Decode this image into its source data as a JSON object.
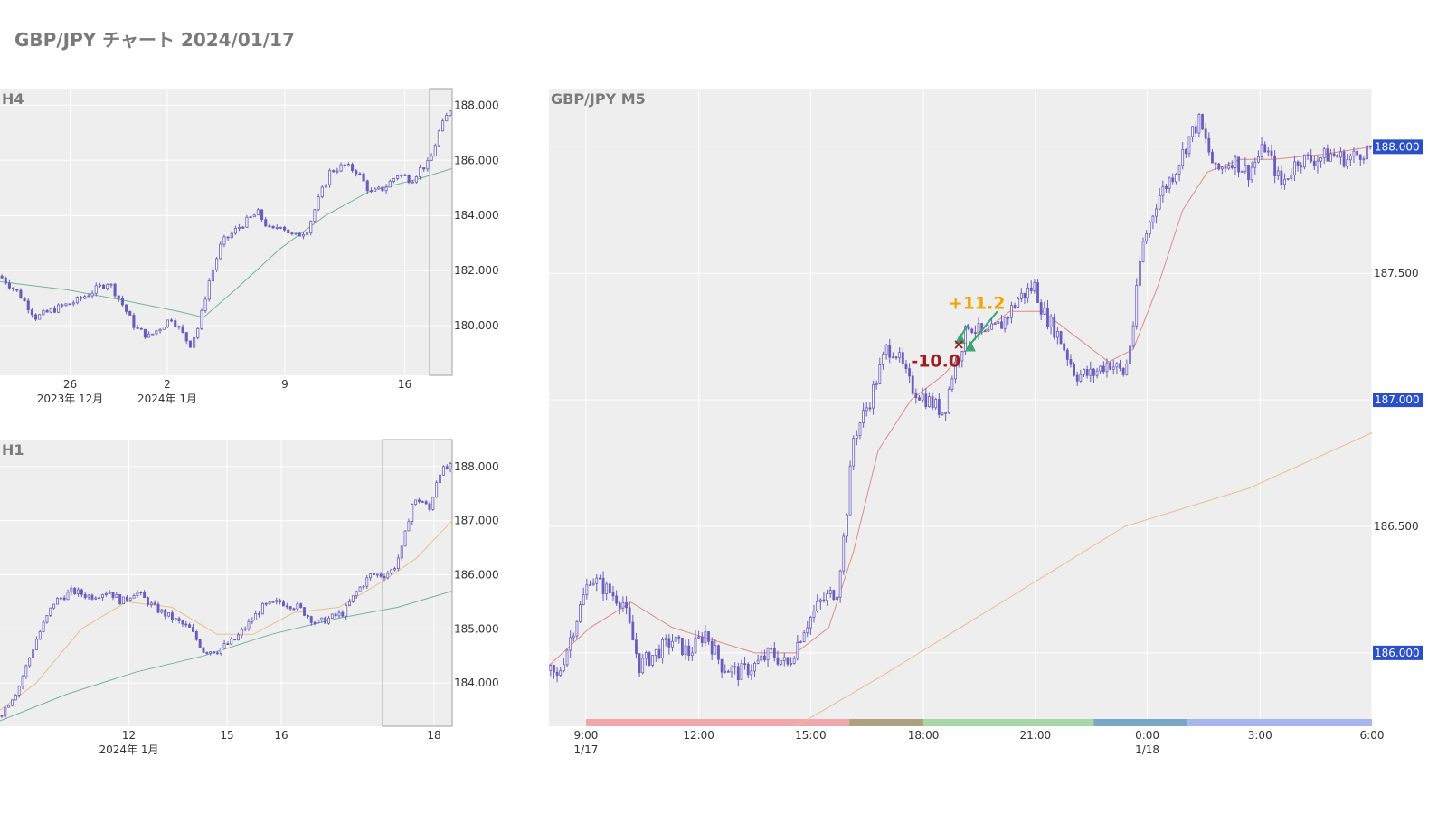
{
  "title": "GBP/JPY チャート 2024/01/17",
  "colors": {
    "plot_bg": "#eeeeee",
    "grid": "#ffffff",
    "candle": "#6a5cbf",
    "ma_green": "#6fb59a",
    "ma_orange": "#e8c08a",
    "ma_red": "#e08a8a",
    "badge": "#2a4fc8",
    "win": "#f5a300",
    "loss": "#a11d21",
    "arrow": "#3aa573"
  },
  "chart_data": [
    {
      "id": "h4",
      "type": "candlestick",
      "label": "H4",
      "x_ticks": [
        {
          "label": "26",
          "sub": "2023年 12月",
          "t": 0.155
        },
        {
          "label": "2",
          "sub": "2024年 1月",
          "t": 0.37
        },
        {
          "label": "9",
          "sub": "",
          "t": 0.63
        },
        {
          "label": "16",
          "sub": "",
          "t": 0.895
        }
      ],
      "y_ticks": [
        180,
        182,
        184,
        186,
        188
      ],
      "y_tick_labels": [
        "180.000",
        "182.000",
        "184.000",
        "186.000",
        "188.000"
      ],
      "ylim": [
        178.2,
        188.6
      ],
      "path": [
        [
          0,
          181.8
        ],
        [
          0.04,
          181.2
        ],
        [
          0.08,
          180.3
        ],
        [
          0.12,
          180.6
        ],
        [
          0.17,
          180.9
        ],
        [
          0.21,
          181.3
        ],
        [
          0.24,
          181.6
        ],
        [
          0.27,
          180.8
        ],
        [
          0.3,
          179.9
        ],
        [
          0.33,
          179.6
        ],
        [
          0.38,
          180.3
        ],
        [
          0.42,
          179.3
        ],
        [
          0.44,
          180.0
        ],
        [
          0.46,
          181.5
        ],
        [
          0.49,
          183.0
        ],
        [
          0.53,
          183.6
        ],
        [
          0.57,
          184.1
        ],
        [
          0.6,
          183.4
        ],
        [
          0.62,
          183.7
        ],
        [
          0.65,
          183.2
        ],
        [
          0.68,
          183.5
        ],
        [
          0.7,
          184.4
        ],
        [
          0.73,
          185.6
        ],
        [
          0.76,
          185.8
        ],
        [
          0.79,
          185.6
        ],
        [
          0.82,
          184.8
        ],
        [
          0.85,
          185.0
        ],
        [
          0.88,
          185.5
        ],
        [
          0.91,
          185.3
        ],
        [
          0.93,
          185.7
        ],
        [
          0.95,
          185.9
        ],
        [
          0.97,
          187.0
        ],
        [
          1.0,
          188.0
        ]
      ],
      "ma": [
        {
          "color": "ma_green",
          "path": [
            [
              0,
              181.6
            ],
            [
              0.15,
              181.3
            ],
            [
              0.28,
              180.9
            ],
            [
              0.4,
              180.5
            ],
            [
              0.45,
              180.3
            ],
            [
              0.52,
              181.3
            ],
            [
              0.62,
              182.8
            ],
            [
              0.72,
              184.0
            ],
            [
              0.82,
              184.9
            ],
            [
              0.92,
              185.3
            ],
            [
              1.0,
              185.7
            ]
          ]
        }
      ]
    },
    {
      "id": "h1",
      "type": "candlestick",
      "label": "H1",
      "x_ticks": [
        {
          "label": "12",
          "sub": "2024年 1月",
          "t": 0.285
        },
        {
          "label": "15",
          "sub": "",
          "t": 0.502
        },
        {
          "label": "16",
          "sub": "",
          "t": 0.622
        },
        {
          "label": "18",
          "sub": "",
          "t": 0.96
        }
      ],
      "y_ticks": [
        184,
        185,
        186,
        187,
        188
      ],
      "y_tick_labels": [
        "184.000",
        "185.000",
        "186.000",
        "187.000",
        "188.000"
      ],
      "ylim": [
        183.2,
        188.5
      ],
      "path": [
        [
          0,
          183.4
        ],
        [
          0.04,
          183.9
        ],
        [
          0.08,
          184.8
        ],
        [
          0.12,
          185.5
        ],
        [
          0.16,
          185.7
        ],
        [
          0.2,
          185.6
        ],
        [
          0.24,
          185.7
        ],
        [
          0.27,
          185.5
        ],
        [
          0.3,
          185.7
        ],
        [
          0.34,
          185.4
        ],
        [
          0.38,
          185.2
        ],
        [
          0.42,
          185.0
        ],
        [
          0.45,
          184.6
        ],
        [
          0.48,
          184.6
        ],
        [
          0.52,
          184.8
        ],
        [
          0.55,
          185.1
        ],
        [
          0.58,
          185.4
        ],
        [
          0.62,
          185.5
        ],
        [
          0.66,
          185.4
        ],
        [
          0.7,
          185.1
        ],
        [
          0.73,
          185.2
        ],
        [
          0.76,
          185.3
        ],
        [
          0.79,
          185.7
        ],
        [
          0.82,
          186.0
        ],
        [
          0.85,
          186.0
        ],
        [
          0.87,
          186.1
        ],
        [
          0.89,
          186.5
        ],
        [
          0.91,
          187.3
        ],
        [
          0.93,
          187.4
        ],
        [
          0.95,
          187.2
        ],
        [
          0.97,
          187.9
        ],
        [
          1.0,
          188.0
        ]
      ],
      "ma": [
        {
          "color": "ma_orange",
          "path": [
            [
              0,
              183.5
            ],
            [
              0.08,
              184.0
            ],
            [
              0.18,
              185.0
            ],
            [
              0.28,
              185.5
            ],
            [
              0.38,
              185.4
            ],
            [
              0.48,
              184.9
            ],
            [
              0.56,
              184.9
            ],
            [
              0.65,
              185.3
            ],
            [
              0.75,
              185.4
            ],
            [
              0.85,
              185.9
            ],
            [
              0.92,
              186.3
            ],
            [
              1.0,
              187.0
            ]
          ]
        },
        {
          "color": "ma_green",
          "path": [
            [
              0,
              183.3
            ],
            [
              0.15,
              183.8
            ],
            [
              0.3,
              184.2
            ],
            [
              0.45,
              184.5
            ],
            [
              0.6,
              184.9
            ],
            [
              0.75,
              185.2
            ],
            [
              0.88,
              185.4
            ],
            [
              1.0,
              185.7
            ]
          ]
        }
      ]
    },
    {
      "id": "m5",
      "type": "candlestick",
      "label": "GBP/JPY M5",
      "x_ticks": [
        {
          "label": "9:00",
          "sub": "1/17",
          "t": 0.045
        },
        {
          "label": "12:00",
          "sub": "",
          "t": 0.182
        },
        {
          "label": "15:00",
          "sub": "",
          "t": 0.318
        },
        {
          "label": "18:00",
          "sub": "",
          "t": 0.455
        },
        {
          "label": "21:00",
          "sub": "",
          "t": 0.591
        },
        {
          "label": "0:00",
          "sub": "1/18",
          "t": 0.727
        },
        {
          "label": "3:00",
          "sub": "",
          "t": 0.864
        },
        {
          "label": "6:00",
          "sub": "",
          "t": 1.0
        }
      ],
      "y_ticks": [
        186.0,
        186.5,
        187.0,
        187.5,
        188.0
      ],
      "y_tick_labels": [
        "186.000",
        "186.500",
        "187.000",
        "187.500",
        "188.000"
      ],
      "y_badges": [
        "188.000",
        "187.000",
        "186.000"
      ],
      "ylim": [
        185.71,
        188.23
      ],
      "path": [
        [
          0,
          185.93
        ],
        [
          0.01,
          185.9
        ],
        [
          0.03,
          186.1
        ],
        [
          0.05,
          186.3
        ],
        [
          0.07,
          186.25
        ],
        [
          0.09,
          186.2
        ],
        [
          0.11,
          185.95
        ],
        [
          0.13,
          186.0
        ],
        [
          0.15,
          186.05
        ],
        [
          0.17,
          186.0
        ],
        [
          0.19,
          186.08
        ],
        [
          0.21,
          185.95
        ],
        [
          0.23,
          185.92
        ],
        [
          0.25,
          185.95
        ],
        [
          0.27,
          186.0
        ],
        [
          0.29,
          185.95
        ],
        [
          0.31,
          186.1
        ],
        [
          0.33,
          186.2
        ],
        [
          0.35,
          186.25
        ],
        [
          0.36,
          186.5
        ],
        [
          0.37,
          186.85
        ],
        [
          0.39,
          187.0
        ],
        [
          0.41,
          187.2
        ],
        [
          0.42,
          187.2
        ],
        [
          0.44,
          187.05
        ],
        [
          0.46,
          187.0
        ],
        [
          0.48,
          186.95
        ],
        [
          0.49,
          187.1
        ],
        [
          0.5,
          187.2
        ],
        [
          0.51,
          187.3
        ],
        [
          0.53,
          187.25
        ],
        [
          0.55,
          187.3
        ],
        [
          0.57,
          187.4
        ],
        [
          0.59,
          187.45
        ],
        [
          0.6,
          187.35
        ],
        [
          0.62,
          187.25
        ],
        [
          0.64,
          187.1
        ],
        [
          0.66,
          187.1
        ],
        [
          0.68,
          187.15
        ],
        [
          0.7,
          187.1
        ],
        [
          0.71,
          187.3
        ],
        [
          0.72,
          187.6
        ],
        [
          0.74,
          187.8
        ],
        [
          0.76,
          187.9
        ],
        [
          0.78,
          188.05
        ],
        [
          0.79,
          188.1
        ],
        [
          0.81,
          187.9
        ],
        [
          0.83,
          187.95
        ],
        [
          0.85,
          187.9
        ],
        [
          0.87,
          188.0
        ],
        [
          0.89,
          187.85
        ],
        [
          0.91,
          187.95
        ],
        [
          0.93,
          187.95
        ],
        [
          0.95,
          187.97
        ],
        [
          0.97,
          187.95
        ],
        [
          1.0,
          188.0
        ]
      ],
      "ma": [
        {
          "color": "ma_red",
          "path": [
            [
              0,
              185.95
            ],
            [
              0.05,
              186.1
            ],
            [
              0.1,
              186.2
            ],
            [
              0.15,
              186.1
            ],
            [
              0.2,
              186.05
            ],
            [
              0.25,
              186.0
            ],
            [
              0.3,
              186.0
            ],
            [
              0.34,
              186.1
            ],
            [
              0.37,
              186.4
            ],
            [
              0.4,
              186.8
            ],
            [
              0.44,
              187.0
            ],
            [
              0.48,
              187.1
            ],
            [
              0.52,
              187.25
            ],
            [
              0.56,
              187.35
            ],
            [
              0.6,
              187.35
            ],
            [
              0.64,
              187.25
            ],
            [
              0.68,
              187.15
            ],
            [
              0.71,
              187.2
            ],
            [
              0.74,
              187.45
            ],
            [
              0.77,
              187.75
            ],
            [
              0.8,
              187.9
            ],
            [
              0.84,
              187.95
            ],
            [
              0.88,
              187.95
            ],
            [
              0.94,
              187.97
            ],
            [
              1.0,
              188.0
            ]
          ]
        },
        {
          "color": "ma_orange",
          "path": [
            [
              0.3,
              185.71
            ],
            [
              0.4,
              185.9
            ],
            [
              0.55,
              186.2
            ],
            [
              0.7,
              186.5
            ],
            [
              0.85,
              186.65
            ],
            [
              1.0,
              186.87
            ]
          ]
        }
      ],
      "annotations": [
        {
          "text": "+11.2",
          "t": 0.52,
          "y": 187.36,
          "color": "win"
        },
        {
          "text": "-10.0",
          "t": 0.47,
          "y": 187.13,
          "color": "loss"
        },
        {
          "text": "×",
          "t": 0.498,
          "y": 187.2,
          "color": "loss"
        }
      ],
      "trades": [
        {
          "t0": 0.512,
          "y0": 187.22,
          "t1": 0.545,
          "y1": 187.35
        },
        {
          "t0": 0.5,
          "y0": 187.25,
          "t1": 0.51,
          "y1": 187.3
        }
      ],
      "sessions": [
        {
          "from": 0.045,
          "to": 0.365,
          "color": "#f0a8ae"
        },
        {
          "from": 0.365,
          "to": 0.455,
          "color": "#ada080"
        },
        {
          "from": 0.455,
          "to": 0.662,
          "color": "#a8d6a6"
        },
        {
          "from": 0.662,
          "to": 0.776,
          "color": "#7aa6c8"
        },
        {
          "from": 0.776,
          "to": 1.0,
          "color": "#a8b6f0"
        }
      ]
    }
  ]
}
